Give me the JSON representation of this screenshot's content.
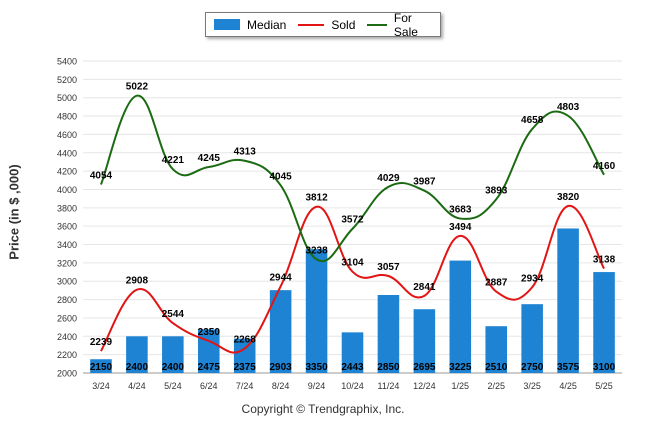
{
  "chart_data": {
    "type": "bar",
    "categories": [
      "3/24",
      "4/24",
      "5/24",
      "6/24",
      "7/24",
      "8/24",
      "9/24",
      "10/24",
      "11/24",
      "12/24",
      "1/25",
      "2/25",
      "3/25",
      "4/25",
      "5/25"
    ],
    "series": [
      {
        "name": "Median",
        "kind": "bar",
        "color": "#1f83d3",
        "values": [
          2150,
          2400,
          2400,
          2475,
          2375,
          2903,
          3350,
          2443,
          2850,
          2695,
          3225,
          2510,
          2750,
          3575,
          3100
        ]
      },
      {
        "name": "Sold",
        "kind": "line",
        "color": "#e31414",
        "values": [
          2239,
          2908,
          2544,
          2350,
          2268,
          2944,
          3812,
          3104,
          3057,
          2841,
          3494,
          2887,
          2934,
          3820,
          3138
        ]
      },
      {
        "name": "For Sale",
        "kind": "line",
        "color": "#1b6b12",
        "values": [
          4054,
          5022,
          4221,
          4245,
          4313,
          4045,
          3238,
          3572,
          4029,
          3987,
          3683,
          3893,
          4658,
          4803,
          4160
        ]
      }
    ],
    "ylabel": "Price (in $ ,000)",
    "xlabel": "",
    "ylim": [
      2000,
      5400
    ],
    "ytick_step": 200,
    "grid": true,
    "legend_position": "top-center"
  },
  "footer": "Copyright © Trendgraphix, Inc."
}
